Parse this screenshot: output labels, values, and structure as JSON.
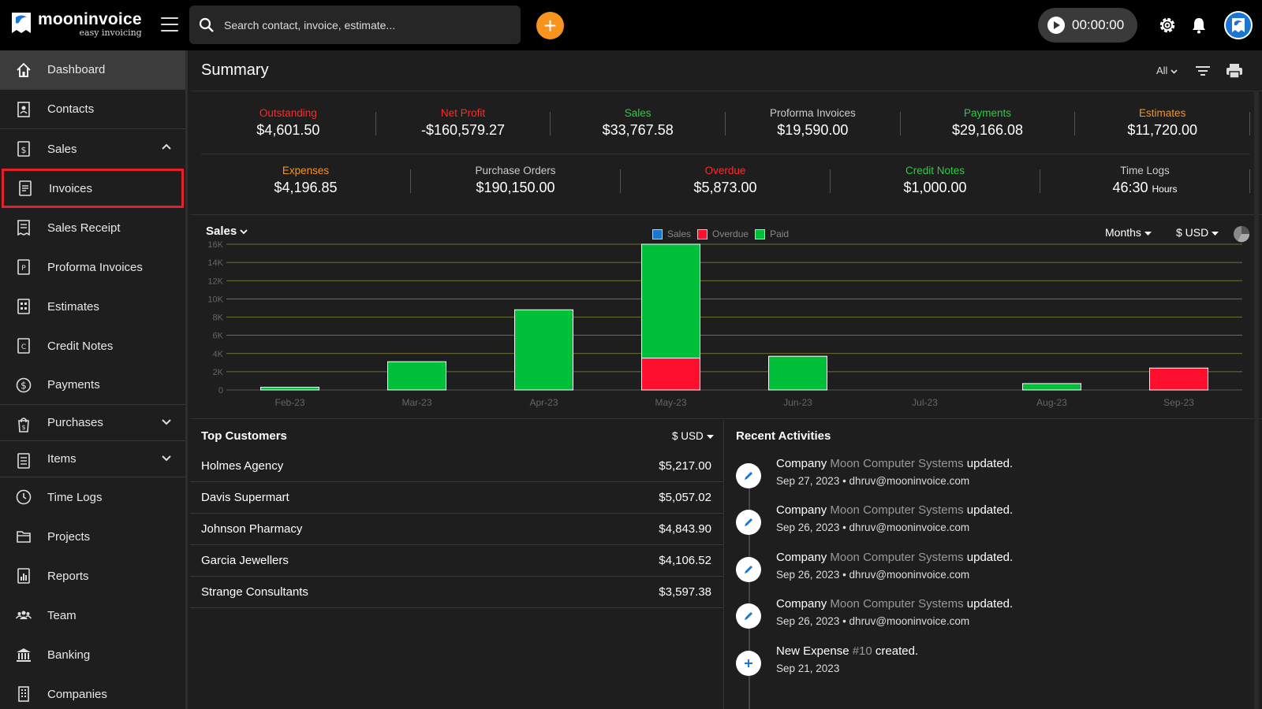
{
  "app": {
    "name": "mooninvoice",
    "tagline": "easy invoicing"
  },
  "topbar": {
    "search_placeholder": "Search contact, invoice, estimate...",
    "add_label": "+",
    "timer": "00:00:00"
  },
  "sidebar": {
    "items": [
      {
        "label": "Dashboard",
        "icon": "home-icon"
      },
      {
        "label": "Contacts",
        "icon": "contacts-icon"
      },
      {
        "label": "Sales",
        "icon": "sales-icon"
      },
      {
        "label": "Invoices",
        "icon": "invoice-icon"
      },
      {
        "label": "Sales Receipt",
        "icon": "receipt-icon"
      },
      {
        "label": "Proforma Invoices",
        "icon": "proforma-icon"
      },
      {
        "label": "Estimates",
        "icon": "estimate-icon"
      },
      {
        "label": "Credit Notes",
        "icon": "credit-note-icon"
      },
      {
        "label": "Payments",
        "icon": "dollar-icon"
      },
      {
        "label": "Purchases",
        "icon": "purchase-icon"
      },
      {
        "label": "Items",
        "icon": "items-icon"
      },
      {
        "label": "Time Logs",
        "icon": "clock-icon"
      },
      {
        "label": "Projects",
        "icon": "folder-icon"
      },
      {
        "label": "Reports",
        "icon": "reports-icon"
      },
      {
        "label": "Team",
        "icon": "team-icon"
      },
      {
        "label": "Banking",
        "icon": "bank-icon"
      },
      {
        "label": "Companies",
        "icon": "companies-icon"
      }
    ]
  },
  "summary": {
    "title": "Summary",
    "filter": "All",
    "row1": [
      {
        "label": "Outstanding",
        "value": "$4,601.50",
        "color": "#ff2a2a"
      },
      {
        "label": "Net Profit",
        "value": "-$160,579.27",
        "color": "#ff2a2a"
      },
      {
        "label": "Sales",
        "value": "$33,767.58",
        "color": "#2ecc40"
      },
      {
        "label": "Proforma Invoices",
        "value": "$19,590.00",
        "color": "#cccccc"
      },
      {
        "label": "Payments",
        "value": "$29,166.08",
        "color": "#2ecc40"
      },
      {
        "label": "Estimates",
        "value": "$11,720.00",
        "color": "#f7941d"
      }
    ],
    "row2": [
      {
        "label": "Expenses",
        "value": "$4,196.85",
        "color": "#f7941d"
      },
      {
        "label": "Purchase Orders",
        "value": "$190,150.00",
        "color": "#cccccc"
      },
      {
        "label": "Overdue",
        "value": "$5,873.00",
        "color": "#ff2a2a"
      },
      {
        "label": "Credit Notes",
        "value": "$1,000.00",
        "color": "#2ecc40"
      },
      {
        "label": "Time Logs",
        "value": "46:30",
        "unit": "Hours",
        "color": "#cccccc"
      }
    ]
  },
  "chart_controls": {
    "title": "Sales",
    "period": "Months",
    "currency": "$ USD"
  },
  "chart_data": {
    "type": "bar",
    "stacked": true,
    "title": "Sales",
    "categories": [
      "Feb-23",
      "Mar-23",
      "Apr-23",
      "May-23",
      "Jun-23",
      "Jul-23",
      "Aug-23",
      "Sep-23"
    ],
    "series": [
      {
        "name": "Sales",
        "color": "#1b76d2",
        "values": [
          0,
          0,
          0,
          0,
          0,
          0,
          0,
          0
        ]
      },
      {
        "name": "Overdue",
        "color": "#ff0f2e",
        "values": [
          0,
          0,
          0,
          3500,
          0,
          0,
          0,
          2400
        ]
      },
      {
        "name": "Paid",
        "color": "#00c03a",
        "values": [
          300,
          3100,
          8800,
          12500,
          3700,
          0,
          700,
          0
        ]
      }
    ],
    "ylim": [
      0,
      16000
    ],
    "yticks": [
      "0",
      "2K",
      "4K",
      "6K",
      "8K",
      "10K",
      "12K",
      "14K",
      "16K"
    ],
    "grid": true,
    "legend": "top"
  },
  "top_customers": {
    "title": "Top Customers",
    "currency": "$ USD",
    "rows": [
      {
        "name": "Holmes Agency",
        "amount": "$5,217.00"
      },
      {
        "name": "Davis Supermart",
        "amount": "$5,057.02"
      },
      {
        "name": "Johnson Pharmacy",
        "amount": "$4,843.90"
      },
      {
        "name": "Garcia Jewellers",
        "amount": "$4,106.52"
      },
      {
        "name": "Strange Consultants",
        "amount": "$3,597.38"
      }
    ]
  },
  "recent_activities": {
    "title": "Recent Activities",
    "items": [
      {
        "pre": "Company ",
        "hl": "Moon Computer Systems",
        "post": " updated.",
        "meta": "Sep 27, 2023 • dhruv@mooninvoice.com",
        "icon": "pencil-icon"
      },
      {
        "pre": "Company ",
        "hl": "Moon Computer Systems",
        "post": " updated.",
        "meta": "Sep 26, 2023 • dhruv@mooninvoice.com",
        "icon": "pencil-icon"
      },
      {
        "pre": "Company ",
        "hl": "Moon Computer Systems",
        "post": " updated.",
        "meta": "Sep 26, 2023 • dhruv@mooninvoice.com",
        "icon": "pencil-icon"
      },
      {
        "pre": "Company ",
        "hl": "Moon Computer Systems",
        "post": " updated.",
        "meta": "Sep 26, 2023 • dhruv@mooninvoice.com",
        "icon": "pencil-icon"
      },
      {
        "pre": "New Expense ",
        "hl": "#10",
        "post": " created.",
        "meta": "Sep 21, 2023",
        "icon": "plus-icon"
      }
    ]
  }
}
